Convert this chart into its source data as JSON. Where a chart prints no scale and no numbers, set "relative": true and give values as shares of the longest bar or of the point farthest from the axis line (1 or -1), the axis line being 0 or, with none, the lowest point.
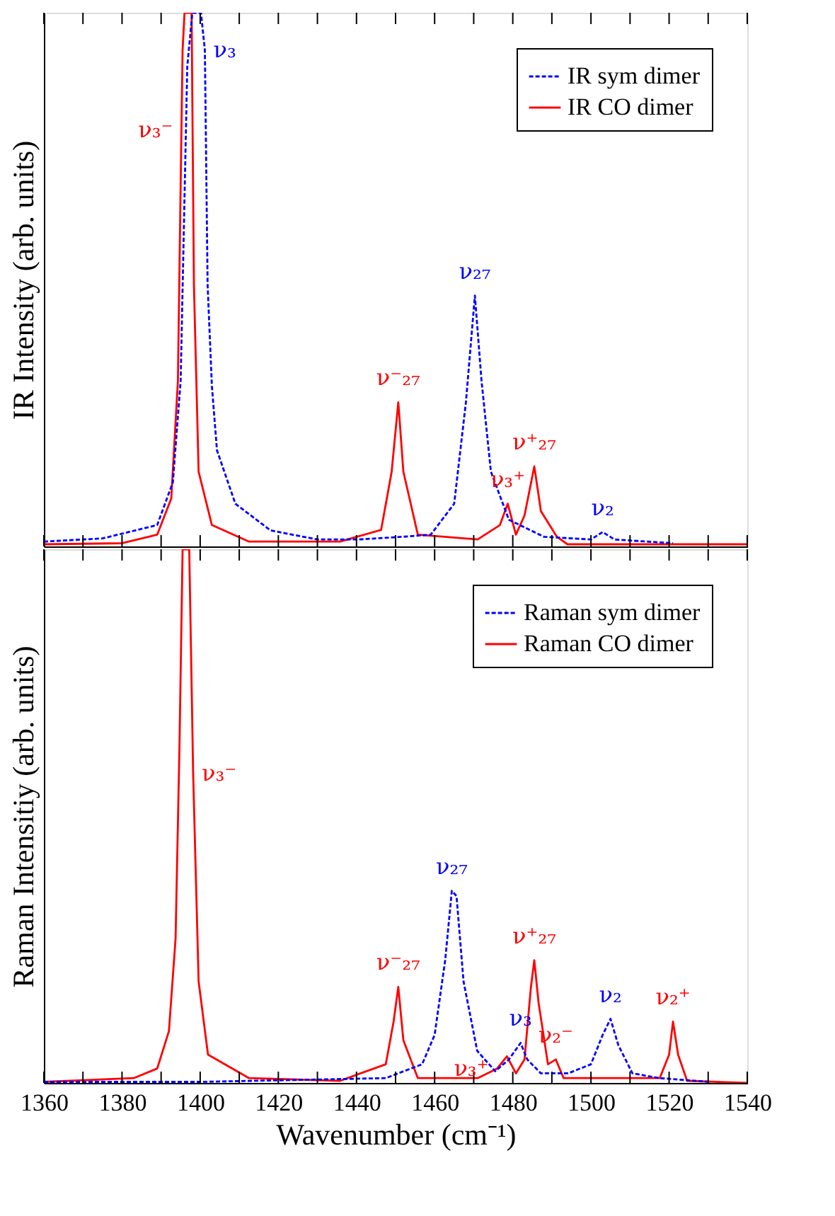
{
  "chart_data": [
    {
      "type": "line",
      "relative": true,
      "ylabel": "IR Intensity (arb. units)",
      "xlim": [
        1360,
        1540
      ],
      "tick_labels": false,
      "grid": false,
      "legend": "top right",
      "marker": "none",
      "xticks": [
        1360,
        {
          "value": 1370,
          "label": null
        },
        1380,
        {
          "value": 1390,
          "label": null
        },
        1400,
        {
          "value": 1410,
          "label": null
        },
        1420,
        {
          "value": 1430,
          "label": null
        },
        1440,
        {
          "value": 1450,
          "label": null
        },
        1460,
        {
          "value": 1470,
          "label": null
        },
        1480,
        {
          "value": 1490,
          "label": null
        },
        1500,
        {
          "value": 1510,
          "label": null
        },
        1520,
        {
          "value": 1530,
          "label": null
        },
        1540
      ],
      "series": [
        {
          "name": "IR sym dimer",
          "color": "#0000ff",
          "line_style": "dashed",
          "x": [
            1360,
            1375,
            1389,
            1393,
            1395,
            1396.7,
            1398,
            1399,
            1400.2,
            1401.2,
            1401.9,
            1403,
            1404.3,
            1409,
            1418,
            1430,
            1440.5,
            1451.6,
            1459,
            1465,
            1468,
            1470.3,
            1472,
            1474.4,
            1479,
            1488,
            1500,
            1503,
            1506,
            1521
          ],
          "values": [
            0.009,
            0.015,
            0.04,
            0.12,
            0.31,
            0.9,
            1,
            1,
            1,
            0.93,
            0.49,
            0.3,
            0.18,
            0.08,
            0.03,
            0.013,
            0.013,
            0.018,
            0.022,
            0.08,
            0.27,
            0.47,
            0.31,
            0.14,
            0.05,
            0.018,
            0.013,
            0.027,
            0.013,
            0.006
          ]
        },
        {
          "name": "IR CO dimer",
          "color": "#ff0000",
          "line_style": "solid",
          "x": [
            1360,
            1380,
            1389,
            1392.6,
            1394.3,
            1395.2,
            1395.5,
            1396,
            1397,
            1397.8,
            1398.4,
            1399.6,
            1403,
            1412.5,
            1435.8,
            1446.3,
            1449,
            1450.7,
            1452,
            1455.7,
            1471,
            1476.7,
            1478.7,
            1480.8,
            1483,
            1485.5,
            1487.2,
            1491.3,
            1494,
            1540
          ],
          "values": [
            0.004,
            0.006,
            0.022,
            0.09,
            0.31,
            0.78,
            0.93,
            1,
            1,
            1,
            0.49,
            0.14,
            0.04,
            0.009,
            0.009,
            0.031,
            0.14,
            0.27,
            0.14,
            0.022,
            0.013,
            0.04,
            0.08,
            0.022,
            0.058,
            0.15,
            0.066,
            0.018,
            0.004,
            0.004
          ]
        }
      ],
      "annotations": [
        {
          "text": "ν₃⁻",
          "x": 1395.2,
          "y": 0.78
        },
        {
          "text": "ν₃",
          "x": 1401.2,
          "y": 0.93
        },
        {
          "text": "ν₂₇",
          "x": 1470.3,
          "y": 0.47
        },
        {
          "text": "ν⁻₂₇",
          "x": 1450.7,
          "y": 0.27
        },
        {
          "text": "ν₃⁺",
          "x": 1478.7,
          "y": 0.08
        },
        {
          "text": "ν⁺₂₇",
          "x": 1485.5,
          "y": 0.15
        },
        {
          "text": "ν₂",
          "x": 1503,
          "y": 0.027
        }
      ]
    },
    {
      "type": "line",
      "relative": true,
      "ylabel": "Raman Intensitiy (arb. units)",
      "xlabel": "Wavenumber (cm⁻¹)",
      "xlim": [
        1360,
        1540
      ],
      "tick_labels": "x",
      "grid": false,
      "legend": "top right",
      "marker": "none",
      "xticks": [
        1360,
        {
          "value": 1370,
          "label": null
        },
        1380,
        {
          "value": 1390,
          "label": null
        },
        1400,
        {
          "value": 1410,
          "label": null
        },
        1420,
        {
          "value": 1430,
          "label": null
        },
        1440,
        {
          "value": 1450,
          "label": null
        },
        1460,
        {
          "value": 1470,
          "label": null
        },
        1480,
        {
          "value": 1490,
          "label": null
        },
        1500,
        {
          "value": 1510,
          "label": null
        },
        1520,
        {
          "value": 1530,
          "label": null
        },
        1540
      ],
      "series": [
        {
          "name": "Raman sym dimer",
          "color": "#0000ff",
          "line_style": "dashed",
          "x": [
            1360,
            1400,
            1447.5,
            1456.8,
            1460,
            1462.7,
            1464.4,
            1465.6,
            1467.4,
            1470.9,
            1475.5,
            1479,
            1482,
            1483.7,
            1487.2,
            1494.2,
            1500,
            1503,
            1505,
            1507,
            1510.6,
            1517.6,
            1530.4
          ],
          "values": [
            0.002,
            0.002,
            0.009,
            0.035,
            0.09,
            0.23,
            0.36,
            0.35,
            0.19,
            0.06,
            0.022,
            0.044,
            0.075,
            0.044,
            0.018,
            0.018,
            0.035,
            0.09,
            0.12,
            0.071,
            0.018,
            0.009,
            0.002
          ]
        },
        {
          "name": "Raman CO dimer",
          "color": "#ff0000",
          "line_style": "solid",
          "x": [
            1360,
            1383,
            1389,
            1392,
            1393.7,
            1394.7,
            1395.5,
            1397.2,
            1398.2,
            1399.6,
            1402,
            1412.5,
            1435.8,
            1447.5,
            1449.5,
            1450.7,
            1452,
            1455.7,
            1471,
            1476,
            1478.5,
            1480.8,
            1483,
            1484.6,
            1485.5,
            1486.6,
            1489,
            1491,
            1493,
            1517.6,
            1520,
            1521,
            1522.3,
            1524.6,
            1539.8
          ],
          "values": [
            0.002,
            0.009,
            0.027,
            0.097,
            0.27,
            0.63,
            1,
            1,
            0.58,
            0.19,
            0.053,
            0.009,
            0.004,
            0.035,
            0.115,
            0.18,
            0.08,
            0.009,
            0.009,
            0.027,
            0.05,
            0.018,
            0.044,
            0.177,
            0.23,
            0.15,
            0.035,
            0.044,
            0.009,
            0.009,
            0.053,
            0.115,
            0.053,
            0.004,
            0.0
          ]
        }
      ],
      "annotations": [
        {
          "text": "ν₃⁻",
          "x": 1398.2,
          "y": 0.58
        },
        {
          "text": "ν₂₇",
          "x": 1464.4,
          "y": 0.36
        },
        {
          "text": "ν₃⁺",
          "x": 1476,
          "y": 0.027
        },
        {
          "text": "ν₃",
          "x": 1482,
          "y": 0.075
        },
        {
          "text": "ν⁺₂₇",
          "x": 1485.5,
          "y": 0.23
        },
        {
          "text": "ν⁻₂₇",
          "x": 1450.7,
          "y": 0.18
        },
        {
          "text": "ν₂⁻",
          "x": 1491,
          "y": 0.044
        },
        {
          "text": "ν₂",
          "x": 1505,
          "y": 0.12
        },
        {
          "text": "ν₂⁺",
          "x": 1521,
          "y": 0.115
        }
      ]
    }
  ]
}
